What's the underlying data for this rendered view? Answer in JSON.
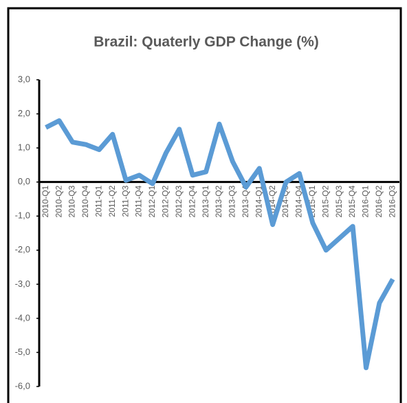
{
  "chart_data": {
    "type": "line",
    "title": "Brazil: Quaterly GDP Change (%)",
    "categories": [
      "2010-Q1",
      "2010-Q2",
      "2010-Q3",
      "2010-Q4",
      "2011-Q1",
      "2011-Q2",
      "2011-Q3",
      "2011-Q4",
      "2012-Q1",
      "2012-Q2",
      "2012-Q3",
      "2012-Q4",
      "2013-Q1",
      "2013-Q2",
      "2013-Q3",
      "2013-Q4",
      "2014-Q1",
      "2014-Q2",
      "2014-Q3",
      "2014-Q4",
      "2015-Q1",
      "2015-Q2",
      "2015-Q3",
      "2015-Q4",
      "2016-Q1",
      "2016-Q2",
      "2016-Q3"
    ],
    "values": [
      1.6,
      1.8,
      1.17,
      1.1,
      0.95,
      1.4,
      0.05,
      0.2,
      -0.05,
      0.85,
      1.55,
      0.2,
      0.3,
      1.7,
      0.6,
      -0.15,
      0.4,
      -1.25,
      0.0,
      0.25,
      -1.2,
      -2.0,
      -1.65,
      -1.3,
      -5.45,
      -3.55,
      -2.85
    ],
    "color": "#5b9bd5",
    "ylim": [
      -6,
      3
    ],
    "yticks": [
      {
        "value": 3,
        "label": "3,0"
      },
      {
        "value": 2,
        "label": "2,0"
      },
      {
        "value": 1,
        "label": "1,0"
      },
      {
        "value": 0,
        "label": "0,0"
      },
      {
        "value": -1,
        "label": "-1,0"
      },
      {
        "value": -2,
        "label": "-2,0"
      },
      {
        "value": -3,
        "label": "-3,0"
      },
      {
        "value": -4,
        "label": "-4,0"
      },
      {
        "value": -5,
        "label": "-5,0"
      },
      {
        "value": -6,
        "label": "-6,0"
      }
    ]
  }
}
